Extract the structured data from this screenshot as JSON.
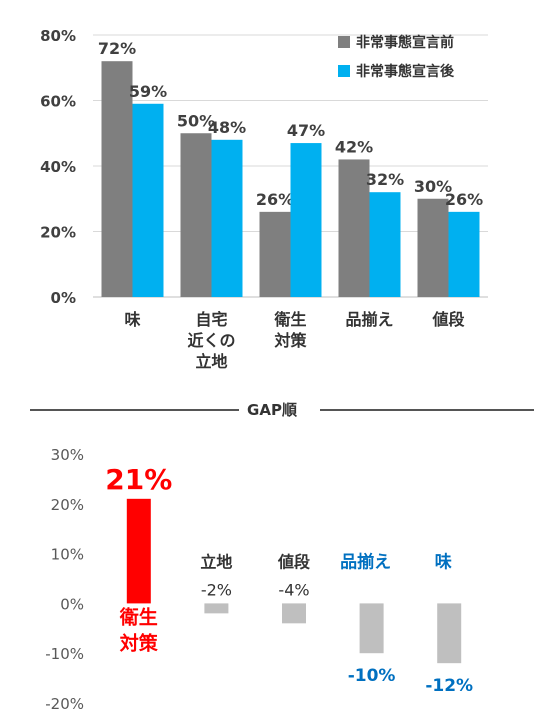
{
  "chart_data": [
    {
      "type": "bar",
      "categories": [
        [
          "味"
        ],
        [
          "自宅",
          "近くの",
          "立地"
        ],
        [
          "衛生",
          "対策"
        ],
        [
          "品揃え"
        ],
        [
          "値段"
        ]
      ],
      "series": [
        {
          "name": "非常事態宣言前",
          "values": [
            72,
            50,
            26,
            42,
            30
          ],
          "color": "#7f7f7f"
        },
        {
          "name": "非常事態宣言後",
          "values": [
            59,
            48,
            47,
            32,
            26
          ],
          "color": "#00b0f0"
        }
      ],
      "data_labels": [
        [
          "72%",
          "50%",
          "26%",
          "42%",
          "30%"
        ],
        [
          "59%",
          "48%",
          "47%",
          "32%",
          "26%"
        ]
      ],
      "ylim": [
        0,
        80
      ],
      "yticks": [
        "0%",
        "20%",
        "40%",
        "60%",
        "80%"
      ],
      "grid": true,
      "legend_position": "top-right"
    },
    {
      "type": "bar",
      "title": "GAP順",
      "categories": [
        [
          "衛生",
          "対策"
        ],
        [
          "立地"
        ],
        [
          "値段"
        ],
        [
          "品揃え"
        ],
        [
          "味"
        ]
      ],
      "values": [
        21,
        -2,
        -4,
        -10,
        -12
      ],
      "data_labels": [
        "21%",
        "-2%",
        "-4%",
        "-10%",
        "-12%"
      ],
      "bar_colors": [
        "#ff0000",
        "#bfbfbf",
        "#bfbfbf",
        "#bfbfbf",
        "#bfbfbf"
      ],
      "label_colors": [
        "#ff0000",
        "#333333",
        "#333333",
        "#0070c0",
        "#0070c0"
      ],
      "ylim": [
        -20,
        30
      ],
      "yticks": [
        "-20%",
        "-10%",
        "0%",
        "10%",
        "20%",
        "30%"
      ],
      "grid": false
    }
  ]
}
